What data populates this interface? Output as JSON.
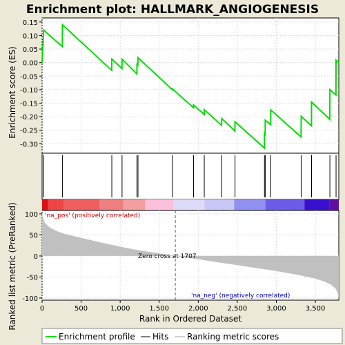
{
  "chart_data": {
    "type": "line",
    "title": "Enrichment plot: HALLMARK_ANGIOGENESIS",
    "xlabel": "Rank in Ordered Dataset",
    "ylabel_top": "Enrichment score (ES)",
    "ylabel_bottom": "Ranked list metric (PreRanked)",
    "x_ticks": [
      "0",
      "500",
      "1,000",
      "1,500",
      "2,000",
      "2,500",
      "3,000",
      "3,500"
    ],
    "x_tick_values": [
      0,
      500,
      1000,
      1500,
      2000,
      2500,
      3000,
      3500
    ],
    "es_ticks": [
      "0.15",
      "0.10",
      "0.05",
      "0.00",
      "-0.05",
      "-0.10",
      "-0.15",
      "-0.20",
      "-0.25",
      "-0.30"
    ],
    "es_tick_values": [
      0.15,
      0.1,
      0.05,
      0.0,
      -0.05,
      -0.1,
      -0.15,
      -0.2,
      -0.25,
      -0.3
    ],
    "metric_ticks": [
      "100",
      "50",
      "0",
      "-50",
      "-100"
    ],
    "metric_tick_values": [
      100,
      50,
      0,
      -50,
      -100
    ],
    "xlim": [
      0,
      3800
    ],
    "es_ylim": [
      -0.335,
      0.165
    ],
    "metric_ylim": [
      -105,
      108
    ],
    "hit_ranks": [
      21,
      260,
      893,
      1024,
      1215,
      1228,
      1668,
      1940,
      2077,
      2300,
      2471,
      2848,
      2858,
      2929,
      3318,
      3451,
      3686,
      3765
    ],
    "es_profile": {
      "x": [
        0,
        21,
        259,
        260,
        892,
        893,
        1023,
        1024,
        1214,
        1215,
        1227,
        1228,
        1667,
        1668,
        1939,
        1940,
        2076,
        2077,
        2299,
        2300,
        2470,
        2471,
        2847,
        2848,
        2857,
        2858,
        2928,
        2929,
        3317,
        3318,
        3450,
        3451,
        3685,
        3686,
        3764,
        3765,
        3800
      ],
      "y": [
        0.0,
        0.12,
        0.059,
        0.14,
        -0.029,
        0.013,
        -0.022,
        0.013,
        -0.042,
        -0.007,
        -0.01,
        0.018,
        -0.1,
        -0.097,
        -0.167,
        -0.157,
        -0.192,
        -0.174,
        -0.232,
        -0.207,
        -0.253,
        -0.219,
        -0.316,
        -0.262,
        -0.265,
        -0.213,
        -0.23,
        -0.175,
        -0.275,
        -0.199,
        -0.234,
        -0.146,
        -0.21,
        -0.1,
        -0.12,
        0.009,
        0.0
      ]
    },
    "metric_curve": {
      "x": [
        0,
        30,
        100,
        200,
        300,
        500,
        750,
        1000,
        1250,
        1500,
        1707,
        2000,
        2250,
        2500,
        2750,
        3000,
        3250,
        3500,
        3600,
        3700,
        3760,
        3790,
        3800
      ],
      "y": [
        100,
        80,
        67,
        58,
        52,
        43,
        32,
        22,
        13,
        6,
        0,
        -8,
        -15,
        -22,
        -29,
        -36,
        -44,
        -54,
        -60,
        -68,
        -78,
        -90,
        -100
      ]
    },
    "zero_cross": 1707,
    "zero_cross_label": "Zero cross at 1707",
    "pos_label": "'na_pos' (positively correlated)",
    "neg_label": "'na_neg' (negatively correlated)",
    "legend": {
      "placement": "bottom",
      "items": [
        "Enrichment profile",
        "Hits",
        "Ranking metric scores"
      ]
    },
    "colors": {
      "profile": "#00dd00",
      "hits": "#000000",
      "metric_fill": "#c0c0c0",
      "pos_label": "#cc0000",
      "neg_label": "#0000cc",
      "grid": "#dddddd",
      "background": "#ece9d8"
    },
    "color_bar": [
      {
        "from": 0,
        "to": 75,
        "color": "#dd1111"
      },
      {
        "from": 75,
        "to": 280,
        "color": "#ee4444"
      },
      {
        "from": 280,
        "to": 740,
        "color": "#ee6060"
      },
      {
        "from": 740,
        "to": 1040,
        "color": "#f08080"
      },
      {
        "from": 1040,
        "to": 1320,
        "color": "#f4a0a0"
      },
      {
        "from": 1320,
        "to": 1680,
        "color": "#fbc0dc"
      },
      {
        "from": 1680,
        "to": 2080,
        "color": "#dcdcfa"
      },
      {
        "from": 2080,
        "to": 2460,
        "color": "#c8c8f8"
      },
      {
        "from": 2460,
        "to": 2860,
        "color": "#9090f0"
      },
      {
        "from": 2860,
        "to": 3360,
        "color": "#6a5ce8"
      },
      {
        "from": 3360,
        "to": 3680,
        "color": "#3a10d0"
      },
      {
        "from": 3680,
        "to": 3800,
        "color": "#6010a0"
      }
    ]
  }
}
